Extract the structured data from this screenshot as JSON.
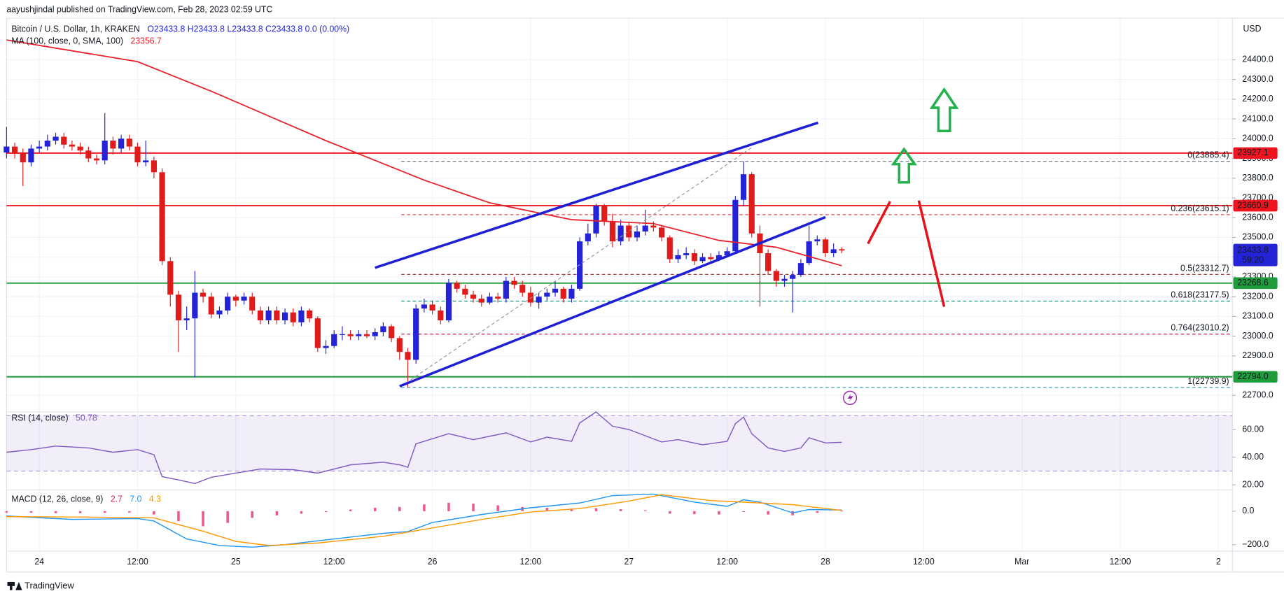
{
  "header": {
    "publisher": "aayushjindal published on TradingView.com, Feb 28, 2023 02:59 UTC",
    "symbol": "Bitcoin / U.S. Dollar, 1h, KRAKEN",
    "ohlc": "O23433.8 H23433.8 L23433.8 C23433.8 0.0 (0.00%)"
  },
  "footer": "TradingView",
  "chart_data": [
    {
      "type": "candlestick",
      "currency": "USD",
      "countdown": "59:20",
      "up_color": "#2424d6",
      "down_color": "#e01b1b",
      "grid": true,
      "open": [
        23930,
        23960,
        23930,
        23880,
        23950,
        23960,
        23990,
        24010,
        23970,
        23960,
        23940,
        23900,
        23890,
        23990,
        23950,
        24000,
        23960,
        23880,
        23890,
        23830,
        23380,
        23210,
        23080,
        23090,
        23220,
        23200,
        23110,
        23130,
        23200,
        23180,
        23200,
        23130,
        23080,
        23130,
        23080,
        23120,
        23070,
        23130,
        23090,
        22940,
        22950,
        23010,
        23010,
        23000,
        23010,
        23000,
        23020,
        23050,
        22990,
        22920,
        22880,
        23140,
        23160,
        23130,
        23080,
        23270,
        23240,
        23210,
        23190,
        23170,
        23200,
        23190,
        23280,
        23260,
        23220,
        23170,
        23200,
        23220,
        23240,
        23190,
        23240,
        23480,
        23520,
        23660,
        23580,
        23480,
        23560,
        23500,
        23530,
        23560,
        23550,
        23500,
        23390,
        23410,
        23420,
        23380,
        23400,
        23390,
        23410,
        23430,
        23690,
        23820,
        23520,
        23420,
        23330,
        23280,
        23290,
        23310,
        23370,
        23480,
        23490,
        23420,
        23440
      ],
      "high": [
        24060,
        23980,
        23950,
        23970,
        23990,
        24020,
        24030,
        24030,
        23990,
        23980,
        23960,
        23920,
        24130,
        24010,
        24020,
        24020,
        23980,
        23990,
        23910,
        23850,
        23400,
        23230,
        23150,
        23330,
        23240,
        23220,
        23150,
        23220,
        23210,
        23220,
        23220,
        23150,
        23150,
        23150,
        23140,
        23140,
        23150,
        23140,
        23100,
        22980,
        23030,
        23050,
        23030,
        23030,
        23030,
        23040,
        23070,
        23060,
        23000,
        22940,
        23160,
        23190,
        23180,
        23150,
        23290,
        23280,
        23260,
        23230,
        23210,
        23220,
        23220,
        23300,
        23300,
        23280,
        23250,
        23220,
        23240,
        23280,
        23250,
        23260,
        23500,
        23570,
        23670,
        23670,
        23620,
        23590,
        23580,
        23560,
        23640,
        23580,
        23560,
        23510,
        23440,
        23450,
        23440,
        23420,
        23420,
        23430,
        23450,
        23710,
        23885.4,
        23830,
        23560,
        23440,
        23340,
        23310,
        23330,
        23390,
        23560,
        23510,
        23500,
        23470,
        23450
      ],
      "low": [
        23900,
        23900,
        23760,
        23860,
        23930,
        23940,
        23970,
        23950,
        23940,
        23920,
        23880,
        23870,
        23870,
        23920,
        23930,
        23940,
        23860,
        23860,
        23800,
        23360,
        23150,
        22920,
        23030,
        22790,
        23170,
        23090,
        23090,
        23110,
        23150,
        23160,
        23110,
        23060,
        23060,
        23060,
        23060,
        23050,
        23050,
        23070,
        22920,
        22910,
        22940,
        22980,
        22980,
        22980,
        22990,
        22980,
        23000,
        22970,
        22880,
        22740,
        22860,
        23120,
        23110,
        23060,
        23070,
        23220,
        23190,
        23170,
        23150,
        23160,
        23170,
        23170,
        23240,
        23200,
        23150,
        23140,
        23180,
        23200,
        23170,
        23170,
        23230,
        23460,
        23500,
        23560,
        23450,
        23460,
        23480,
        23480,
        23510,
        23530,
        23480,
        23370,
        23370,
        23390,
        23360,
        23370,
        23370,
        23380,
        23400,
        23420,
        23660,
        23500,
        23150,
        23310,
        23250,
        23250,
        23120,
        23300,
        23360,
        23460,
        23400,
        23400,
        23420
      ],
      "close": [
        23960,
        23930,
        23880,
        23950,
        23960,
        23990,
        24010,
        23970,
        23960,
        23940,
        23900,
        23890,
        23990,
        23950,
        24000,
        23960,
        23880,
        23890,
        23830,
        23380,
        23210,
        23080,
        23090,
        23220,
        23200,
        23110,
        23130,
        23200,
        23180,
        23200,
        23130,
        23080,
        23130,
        23080,
        23120,
        23070,
        23130,
        23090,
        22940,
        22950,
        23010,
        23010,
        23000,
        23010,
        23000,
        23020,
        23050,
        22990,
        22920,
        22880,
        23140,
        23160,
        23130,
        23080,
        23270,
        23240,
        23210,
        23190,
        23170,
        23200,
        23190,
        23280,
        23260,
        23220,
        23170,
        23200,
        23220,
        23240,
        23190,
        23240,
        23480,
        23520,
        23660,
        23580,
        23480,
        23560,
        23500,
        23530,
        23560,
        23550,
        23500,
        23390,
        23410,
        23420,
        23380,
        23400,
        23390,
        23410,
        23430,
        23690,
        23820,
        23520,
        23420,
        23330,
        23280,
        23290,
        23310,
        23370,
        23480,
        23490,
        23420,
        23440,
        23433.8
      ],
      "xlim": [
        0,
        149.7
      ],
      "xticks": [
        {
          "value": 4,
          "label": "24"
        },
        {
          "value": 16,
          "label": "12:00"
        },
        {
          "value": 28,
          "label": "25"
        },
        {
          "value": 40,
          "label": "12:00"
        },
        {
          "value": 52,
          "label": "26"
        },
        {
          "value": 64,
          "label": "12:00"
        },
        {
          "value": 76,
          "label": "27"
        },
        {
          "value": 88,
          "label": "12:00"
        },
        {
          "value": 100,
          "label": "28"
        },
        {
          "value": 112,
          "label": "12:00"
        },
        {
          "value": 124,
          "label": "Mar"
        },
        {
          "value": 136,
          "label": "12:00"
        },
        {
          "value": 148,
          "label": "2"
        }
      ],
      "ylim": [
        22616,
        24610
      ],
      "yticks": [
        {
          "value": 22700,
          "label": "22700.0"
        },
        {
          "value": 22800,
          "label": "22800.0"
        },
        {
          "value": 22900,
          "label": "22900.0"
        },
        {
          "value": 23000,
          "label": "23000.0"
        },
        {
          "value": 23100,
          "label": "23100.0"
        },
        {
          "value": 23200,
          "label": "23200.0"
        },
        {
          "value": 23300,
          "label": "23300.0"
        },
        {
          "value": 23400,
          "label": "23400.0"
        },
        {
          "value": 23500,
          "label": "23500.0"
        },
        {
          "value": 23600,
          "label": "23600.0"
        },
        {
          "value": 23700,
          "label": "23700.0"
        },
        {
          "value": 23800,
          "label": "23800.0"
        },
        {
          "value": 23900,
          "label": "23900.0"
        },
        {
          "value": 24000,
          "label": "24000.0"
        },
        {
          "value": 24100,
          "label": "24100.0"
        },
        {
          "value": 24200,
          "label": "24200.0"
        },
        {
          "value": 24300,
          "label": "24300.0"
        },
        {
          "value": 24400,
          "label": "24400.0"
        }
      ],
      "ma": {
        "name": "MA (100, close, 0, SMA, 100)",
        "color": "#e8202a",
        "x": [
          0,
          16,
          25,
          39,
          51,
          59,
          69,
          79,
          87,
          94,
          102
        ],
        "values": [
          24500,
          24390,
          24240,
          23990,
          23790,
          23675,
          23590,
          23570,
          23485,
          23450,
          23356.7
        ]
      },
      "levels": [
        {
          "value": 23927.1,
          "color": "#f0141e"
        },
        {
          "value": 23660.9,
          "color": "#f0141e"
        },
        {
          "value": 23268.6,
          "color": "#1f9d3a"
        },
        {
          "value": 22794,
          "label": "22794.0",
          "color": "#1f9d3a"
        }
      ],
      "fib": [
        {
          "value": 23885.4,
          "label": "0(23885.4)",
          "color": "#787b86"
        },
        {
          "value": 23615.1,
          "label": "0.236(23615.1)",
          "color": "#e0343e"
        },
        {
          "value": 23312.7,
          "label": "0.5(23312.7)",
          "color": "#9c2a2a"
        },
        {
          "value": 23177.5,
          "label": "0.618(23177.5)",
          "color": "#089981"
        },
        {
          "value": 23010.2,
          "label": "0.764(23010.2)",
          "color": "#c2185b"
        },
        {
          "value": 22739.9,
          "label": "1(22739.9)",
          "color": "#2a8fb4"
        }
      ]
    },
    {
      "type": "line",
      "title": "RSI (14, close)",
      "color": "#7e57c2",
      "bands": [
        30,
        70
      ],
      "x": [
        0,
        3,
        6,
        10,
        13,
        16,
        18,
        19,
        21,
        23,
        25,
        28,
        31,
        35,
        38,
        39,
        42,
        46,
        48,
        49,
        50,
        54,
        57,
        61,
        64,
        66,
        69,
        70,
        72,
        74,
        76,
        80,
        82,
        85,
        88,
        89,
        90,
        91,
        93,
        95,
        97,
        98,
        100,
        102
      ],
      "values": [
        43.6,
        45.5,
        48,
        46.7,
        43.6,
        45.5,
        41.8,
        26,
        23.6,
        21,
        25.5,
        28.5,
        31.5,
        31,
        28.5,
        30,
        34.5,
        36.4,
        34.5,
        32.7,
        49.7,
        57,
        52.7,
        57.6,
        51,
        54.5,
        51.5,
        64.8,
        72.7,
        62.4,
        60,
        51,
        52.7,
        49,
        51.5,
        64.2,
        69,
        57,
        46.7,
        44.2,
        46.7,
        54,
        50.3,
        50.78
      ],
      "ylim": [
        16.4,
        72.7
      ],
      "yticks": [
        {
          "value": 60,
          "label": "60.00"
        },
        {
          "value": 40,
          "label": "40.00"
        },
        {
          "value": 20,
          "label": "20.00"
        }
      ]
    },
    {
      "type": "macd",
      "title": "MACD (12, 26, close, 9)",
      "ylim": [
        -239,
        127
      ],
      "yticks": [
        {
          "value": 0,
          "label": "0.0"
        },
        {
          "value": -200,
          "label": "−200.0"
        }
      ],
      "histogram": {
        "color": "#e91e63",
        "x": [
          0,
          3,
          6,
          9,
          12,
          15,
          18,
          21,
          24,
          27,
          30,
          33,
          36,
          39,
          42,
          45,
          48,
          51,
          54,
          57,
          60,
          63,
          66,
          69,
          72,
          75,
          78,
          81,
          84,
          87,
          90,
          93,
          96,
          99,
          102
        ],
        "values": [
          -8,
          -10,
          -12,
          -12,
          -10,
          -8,
          -20,
          -60,
          -90,
          -70,
          -40,
          -25,
          -15,
          -5,
          10,
          20,
          25,
          40,
          50,
          45,
          35,
          25,
          20,
          15,
          18,
          12,
          5,
          -15,
          -18,
          -20,
          -5,
          -20,
          -25,
          -10,
          2.7
        ]
      },
      "macd": {
        "color": "#2196f3",
        "x": [
          0,
          8,
          16,
          18,
          22,
          26,
          30,
          34,
          40,
          46,
          49,
          52,
          58,
          64,
          70,
          74,
          79,
          84,
          88,
          90,
          92,
          96,
          98,
          102
        ],
        "values": [
          -29,
          -49,
          -44,
          -59,
          -166,
          -205,
          -215,
          -200,
          -166,
          -132,
          -122,
          -68,
          -20,
          20,
          49,
          93,
          102,
          54,
          29,
          68,
          54,
          -10,
          10,
          7.0
        ],
        "value_labels": [
          null,
          null,
          null,
          null,
          null,
          null,
          null,
          null,
          null,
          null,
          null,
          null,
          null,
          null,
          null,
          null,
          null,
          null,
          null,
          null,
          null,
          null,
          null,
          "7.0"
        ]
      },
      "signal": {
        "color": "#ff9800",
        "x": [
          0,
          10,
          18,
          24,
          28,
          32,
          38,
          46,
          52,
          58,
          64,
          70,
          76,
          80,
          86,
          92,
          96,
          102
        ],
        "values": [
          -33,
          -35,
          -40,
          -120,
          -180,
          -205,
          -190,
          -150,
          -100,
          -50,
          -5,
          15,
          60,
          98,
          63,
          49,
          39,
          4.3
        ]
      }
    }
  ]
}
